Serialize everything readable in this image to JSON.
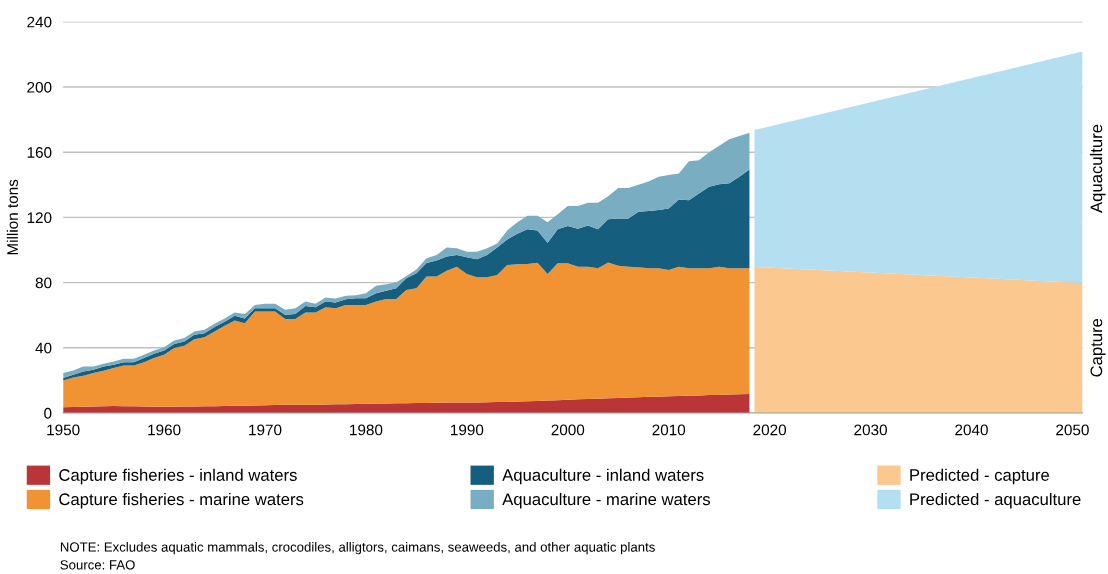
{
  "chart_data": {
    "type": "area",
    "stacked": true,
    "ylabel": "Million tons",
    "x": [
      1950,
      1951,
      1952,
      1953,
      1954,
      1955,
      1956,
      1957,
      1958,
      1959,
      1960,
      1961,
      1962,
      1963,
      1964,
      1965,
      1966,
      1967,
      1968,
      1969,
      1970,
      1971,
      1972,
      1973,
      1974,
      1975,
      1976,
      1977,
      1978,
      1979,
      1980,
      1981,
      1982,
      1983,
      1984,
      1985,
      1986,
      1987,
      1988,
      1989,
      1990,
      1991,
      1992,
      1993,
      1994,
      1995,
      1996,
      1997,
      1998,
      1999,
      2000,
      2001,
      2002,
      2003,
      2004,
      2005,
      2006,
      2007,
      2008,
      2009,
      2010,
      2011,
      2012,
      2013,
      2014,
      2015,
      2016,
      2017,
      2018,
      2018.5,
      2051
    ],
    "series": [
      {
        "name": "Capture fisheries - inland waters",
        "color": "#b93537",
        "values": [
          3.5,
          3.7,
          3.9,
          4,
          4.2,
          4.3,
          4.2,
          4.1,
          4,
          3.9,
          3.8,
          3.9,
          4,
          4,
          4.1,
          4.2,
          4.3,
          4.4,
          4.5,
          4.6,
          4.8,
          4.9,
          5,
          5,
          5,
          5.1,
          5.2,
          5.3,
          5.4,
          5.5,
          5.7,
          5.8,
          5.9,
          6,
          6,
          6.1,
          6.2,
          6.3,
          6.4,
          6.5,
          6.5,
          6.5,
          6.6,
          6.7,
          6.8,
          7,
          7.2,
          7.4,
          7.6,
          7.8,
          8.2,
          8.4,
          8.6,
          8.8,
          9,
          9.2,
          9.5,
          9.7,
          9.9,
          10,
          10.2,
          10.4,
          10.6,
          10.8,
          11,
          11.1,
          11.3,
          11.5,
          11.6,
          null,
          null
        ]
      },
      {
        "name": "Capture fisheries - marine waters",
        "color": "#f19233",
        "values": [
          16.5,
          18.1,
          19.0,
          20.5,
          21.7,
          23.3,
          25.0,
          25.1,
          27.2,
          29.8,
          31.9,
          35.9,
          37.2,
          41.3,
          42.4,
          45.8,
          49.2,
          52.3,
          50.5,
          57.6,
          57.4,
          57.3,
          52.6,
          52.6,
          56.6,
          56.5,
          59.7,
          59.0,
          60.9,
          60.8,
          60.6,
          62.6,
          64.1,
          64.0,
          69.5,
          70.4,
          77.5,
          77.4,
          80.9,
          83.3,
          78.8,
          76.8,
          76.7,
          78.0,
          84.0,
          84.2,
          84.2,
          84.8,
          77.7,
          84.0,
          83.6,
          81.4,
          81.2,
          80.0,
          83.4,
          81.2,
          80.3,
          79.7,
          78.9,
          78.8,
          77.6,
          79.4,
          78.2,
          78.0,
          77.8,
          78.7,
          77.5,
          77.3,
          77.2,
          null,
          null
        ]
      },
      {
        "name": "Aquaculture - inland waters",
        "color": "#155e7d",
        "values": [
          1.4,
          1.7,
          2.6,
          2.0,
          2.7,
          2.0,
          2.0,
          2.0,
          2.5,
          2.6,
          2.7,
          2.6,
          2.7,
          2.7,
          2.5,
          2.7,
          2.5,
          2.9,
          3.0,
          2.1,
          2.1,
          2.1,
          2.6,
          3.2,
          4.1,
          3.3,
          3.5,
          3.5,
          3.5,
          4.1,
          4.1,
          5.1,
          5.0,
          6.5,
          7.2,
          9.2,
          8.3,
          9.8,
          8.7,
          7.2,
          10.2,
          11.0,
          13.7,
          16.9,
          15.7,
          18.8,
          21.3,
          19.8,
          19.2,
          20.9,
          22.9,
          23.2,
          25.2,
          23.9,
          26.4,
          29.0,
          29.6,
          34.1,
          35.2,
          35.7,
          37.7,
          41.2,
          41.8,
          45.9,
          50.0,
          50.6,
          52.2,
          56.2,
          60.6,
          null,
          null
        ]
      },
      {
        "name": "Aquaculture - marine waters",
        "color": "#79adc1",
        "values": [
          3.1,
          2.5,
          3.1,
          2.1,
          1.6,
          2.0,
          2.1,
          2.1,
          2.0,
          2.1,
          2.0,
          2.1,
          2.1,
          2.0,
          2.0,
          2.0,
          2.0,
          2.0,
          2.8,
          2.0,
          2.7,
          2.7,
          3.1,
          3.5,
          2.7,
          2.1,
          2.4,
          2.4,
          2.2,
          1.8,
          3.1,
          4.5,
          4.0,
          3.5,
          1.3,
          2.3,
          3.0,
          3.5,
          5.6,
          4.0,
          3.5,
          4.7,
          4.0,
          2.4,
          5.5,
          7.0,
          8.3,
          9.0,
          12.5,
          9.3,
          12.3,
          14.0,
          14.0,
          16.3,
          14.2,
          18.6,
          18.6,
          16.5,
          18.0,
          20.5,
          20.5,
          16.0,
          23.9,
          20.3,
          21.2,
          23.6,
          27.0,
          25.0,
          22.6,
          null,
          null
        ]
      },
      {
        "name": "Predicted - capture",
        "color": "#fbc98f",
        "values": [
          null,
          null,
          null,
          null,
          null,
          null,
          null,
          null,
          null,
          null,
          null,
          null,
          null,
          null,
          null,
          null,
          null,
          null,
          null,
          null,
          null,
          null,
          null,
          null,
          null,
          null,
          null,
          null,
          null,
          null,
          null,
          null,
          null,
          null,
          null,
          null,
          null,
          null,
          null,
          null,
          null,
          null,
          null,
          null,
          null,
          null,
          null,
          null,
          null,
          null,
          null,
          null,
          null,
          null,
          null,
          null,
          null,
          null,
          null,
          null,
          null,
          null,
          null,
          null,
          null,
          null,
          null,
          null,
          null,
          89.6,
          79.8
        ]
      },
      {
        "name": "Predicted - aquaculture",
        "color": "#b3dff1",
        "values": [
          null,
          null,
          null,
          null,
          null,
          null,
          null,
          null,
          null,
          null,
          null,
          null,
          null,
          null,
          null,
          null,
          null,
          null,
          null,
          null,
          null,
          null,
          null,
          null,
          null,
          null,
          null,
          null,
          null,
          null,
          null,
          null,
          null,
          null,
          null,
          null,
          null,
          null,
          null,
          null,
          null,
          null,
          null,
          null,
          null,
          null,
          null,
          null,
          null,
          null,
          null,
          null,
          null,
          null,
          null,
          null,
          null,
          null,
          null,
          null,
          null,
          null,
          null,
          null,
          null,
          null,
          null,
          null,
          null,
          84.0,
          142.0
        ]
      }
    ],
    "xlim": [
      1950,
      2051
    ],
    "xticks": [
      1950,
      1960,
      1970,
      1980,
      1990,
      2000,
      2010,
      2020,
      2030,
      2040,
      2050
    ],
    "ylim": [
      0,
      240
    ],
    "yticks": [
      0,
      40,
      80,
      120,
      160,
      200,
      240
    ],
    "grid": "y",
    "legend": "bottom",
    "annotations": [
      {
        "text": "Aquaculture",
        "x": 2051,
        "y": 150
      },
      {
        "text": "Capture",
        "x": 2051,
        "y": 40
      },
      "NOTE: Excludes aquatic mammals, crocodiles, alligtors, caimans, seaweeds, and other aquatic plants",
      "Source: FAO"
    ]
  }
}
